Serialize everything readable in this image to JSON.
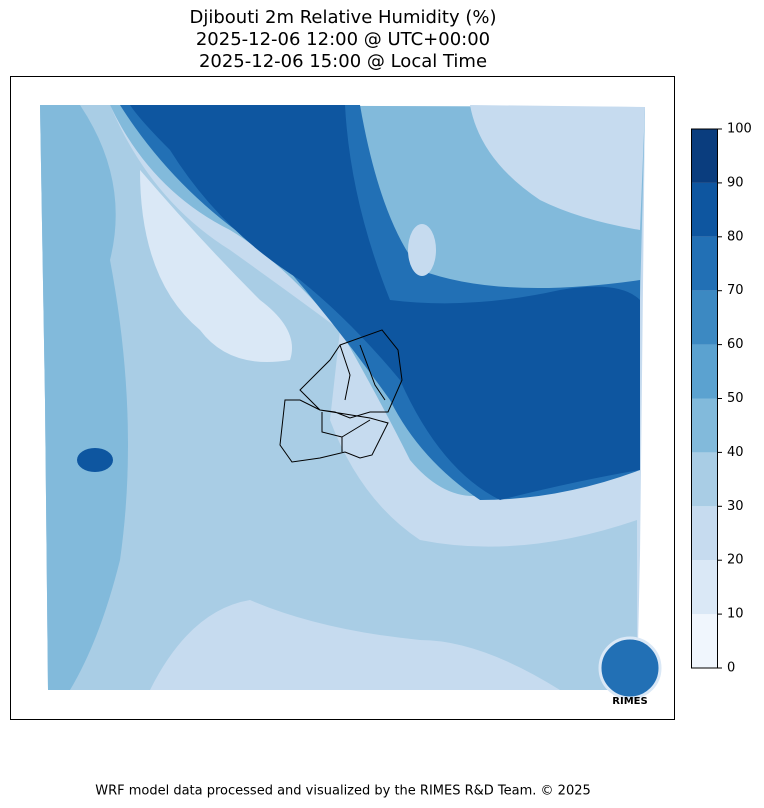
{
  "title": [
    "Djibouti 2m Relative Humidity (%)",
    "2025-12-06 12:00 @ UTC+00:00",
    "2025-12-06 15:00 @ Local Time"
  ],
  "colorbar": {
    "ticks": [
      0,
      10,
      20,
      30,
      40,
      50,
      60,
      70,
      80,
      90,
      100
    ],
    "colors": [
      "#f0f6fd",
      "#dae8f6",
      "#c6dbef",
      "#a9cde5",
      "#82badb",
      "#5ba2d0",
      "#3c89c2",
      "#2270b5",
      "#0e56a0",
      "#0a3d7e"
    ]
  },
  "logo": "RIMES",
  "footer": "WRF model data processed and visualized by the RIMES R&D Team. © 2025"
}
